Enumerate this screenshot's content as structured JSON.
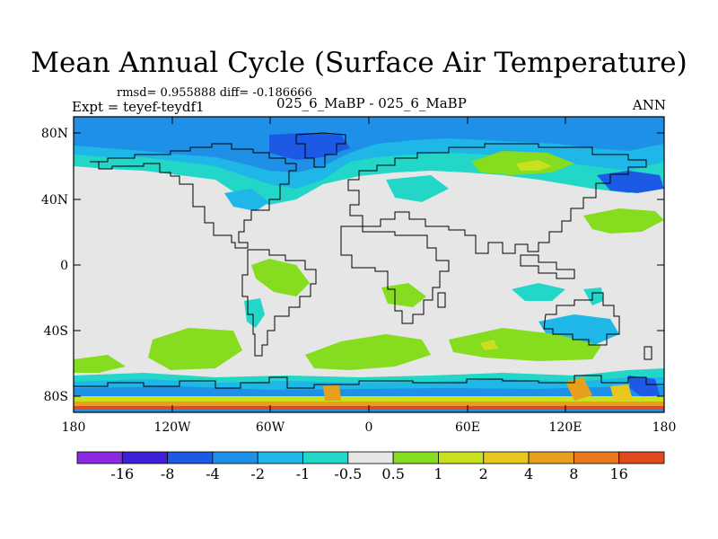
{
  "title": "Mean Annual Cycle (Surface Air Temperature)",
  "stats": "rmsd= 0.955888 diff= -0.186666",
  "experiment": "Expt = teyef-teydf1",
  "runs": "025_6_MaBP - 025_6_MaBP",
  "season": "ANN",
  "lat_labels": [
    "80N",
    "40N",
    "0",
    "40S",
    "80S"
  ],
  "lon_labels": [
    "180",
    "120W",
    "60W",
    "0",
    "60E",
    "120E",
    "180"
  ],
  "colorbar": {
    "labels": [
      "-16",
      "-8",
      "-4",
      "-2",
      "-1",
      "-0.5",
      "0.5",
      "1",
      "2",
      "4",
      "8",
      "16"
    ],
    "colors": [
      "#8a2be2",
      "#3f1fd8",
      "#1c5ae6",
      "#1e90e8",
      "#1fb6e8",
      "#22d6c8",
      "#e6e6e6",
      "#86dc1e",
      "#c8e01e",
      "#e8c81e",
      "#e6a01e",
      "#e6781e",
      "#e04a1e"
    ]
  }
}
